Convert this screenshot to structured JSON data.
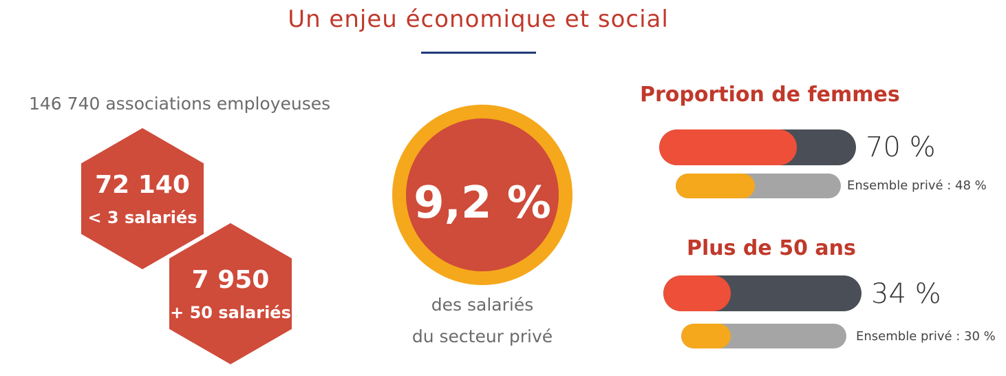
{
  "header": {
    "title": "Un enjeu économique et social"
  },
  "associations": {
    "total_label": "146 740 associations employeuses",
    "groups": [
      {
        "count": "72 140",
        "label": "< 3 salariés"
      },
      {
        "count": "7 950",
        "label": "+ 50 salariés"
      }
    ]
  },
  "share": {
    "value": "9,2 %",
    "caption_line1": "des salariés",
    "caption_line2": "du secteur privé"
  },
  "women": {
    "title": "Proportion de femmes",
    "value_text": "70 %",
    "value_fraction": 0.7,
    "ref_text": "Ensemble privé : 48 %",
    "ref_fraction": 0.48
  },
  "over50": {
    "title": "Plus de 50 ans",
    "value_text": "34 %",
    "value_fraction": 0.34,
    "ref_text": "Ensemble privé : 30 %",
    "ref_fraction": 0.3
  },
  "colors": {
    "accent_red": "#cf4b3a",
    "bright_red": "#ee4f38",
    "orange": "#f5a81c",
    "dark_gray": "#4a4f57",
    "light_gray": "#a5a5a5",
    "navy_rule": "#1f3a7a"
  }
}
